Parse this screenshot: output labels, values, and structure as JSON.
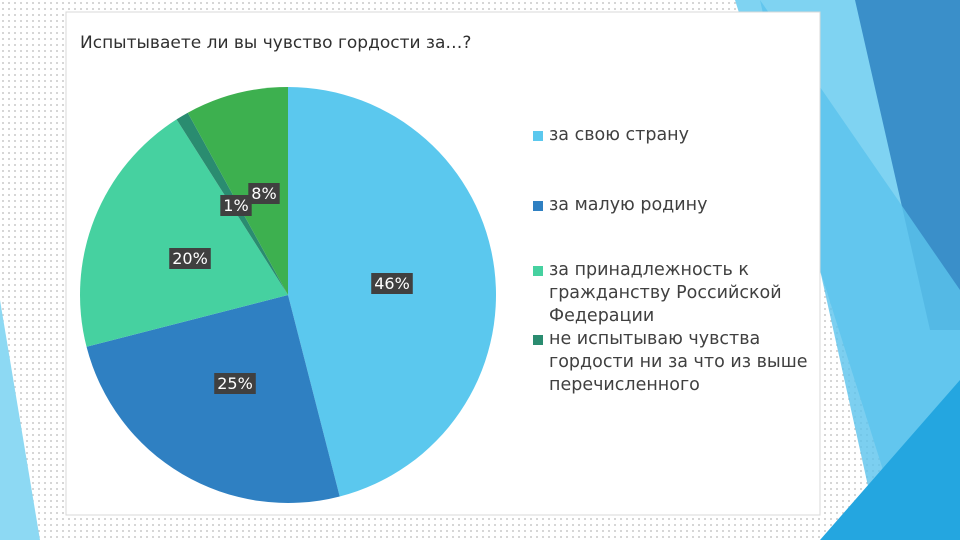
{
  "chart_data": {
    "type": "pie",
    "title": "Испытываете ли вы чувство гордости за…?",
    "categories": [
      "за свою страну",
      "за малую родину",
      "за принадлежность к гражданству Российской Федерации",
      "не испытываю чувства гордости ни за что из выше перечисленного",
      null
    ],
    "values": [
      46,
      25,
      20,
      1,
      8
    ],
    "value_labels": [
      "46%",
      "25%",
      "20%",
      "1%",
      "8%"
    ],
    "colors": [
      "#5bc8ee",
      "#2f80c2",
      "#46d1a0",
      "#2a8c70",
      "#3db04f"
    ],
    "legend": "right"
  }
}
